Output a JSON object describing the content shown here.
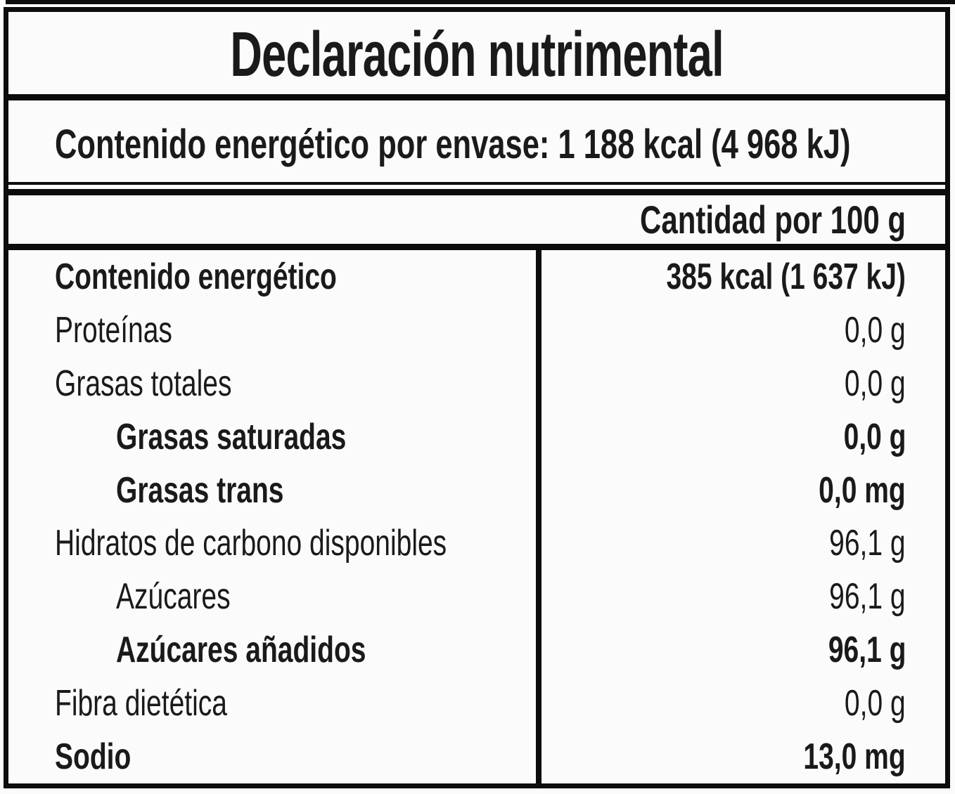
{
  "label": {
    "title": "Declaración nutrimental",
    "energy_per_package": "Contenido energético por envase: 1 188 kcal (4 968 kJ)",
    "column_header": "Cantidad por 100 g",
    "rows": [
      {
        "name": "Contenido energético",
        "value": "385 kcal (1 637 kJ)",
        "bold": true,
        "indent": 0
      },
      {
        "name": "Proteínas",
        "value": "0,0 g",
        "bold": false,
        "indent": 0
      },
      {
        "name": "Grasas totales",
        "value": "0,0 g",
        "bold": false,
        "indent": 0
      },
      {
        "name": "Grasas saturadas",
        "value": "0,0 g",
        "bold": true,
        "indent": 1
      },
      {
        "name": "Grasas trans",
        "value": "0,0 mg",
        "bold": true,
        "indent": 1
      },
      {
        "name": "Hidratos de carbono disponibles",
        "value": "96,1 g",
        "bold": false,
        "indent": 0
      },
      {
        "name": "Azúcares",
        "value": "96,1 g",
        "bold": false,
        "indent": 1
      },
      {
        "name": "Azúcares añadidos",
        "value": "96,1 g",
        "bold": true,
        "indent": 1
      },
      {
        "name": "Fibra dietética",
        "value": "0,0 g",
        "bold": false,
        "indent": 0
      },
      {
        "name": "Sodio",
        "value": "13,0 mg",
        "bold": true,
        "indent": 0
      }
    ],
    "colors": {
      "line": "#0c0c0c",
      "text": "#1a1a1a",
      "background": "#fbfbfb"
    }
  }
}
